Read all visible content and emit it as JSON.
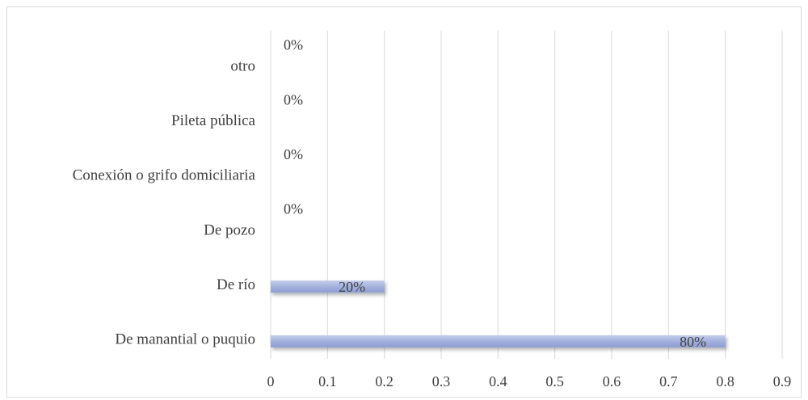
{
  "chart_data": {
    "type": "bar",
    "orientation": "horizontal",
    "categories": [
      "De manantial o puquio",
      "De río",
      "De pozo",
      "Conexión o grifo domiciliaria",
      "Pileta pública",
      "otro"
    ],
    "values": [
      0.8,
      0.2,
      0,
      0,
      0,
      0
    ],
    "data_labels": [
      "80%",
      "20%",
      "0%",
      "0%",
      "0%",
      "0%"
    ],
    "xlim": [
      0,
      0.9
    ],
    "xticks": [
      "0",
      "0.1",
      "0.2",
      "0.3",
      "0.4",
      "0.5",
      "0.6",
      "0.7",
      "0.8",
      "0.9"
    ],
    "grid": "vertical",
    "legend": "none",
    "bar_color": "#a3b1dd"
  }
}
